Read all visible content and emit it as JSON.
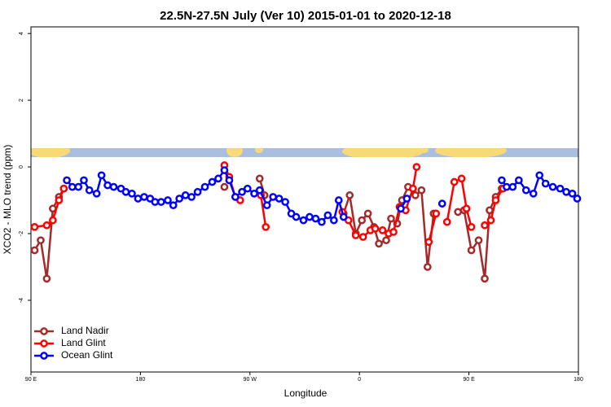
{
  "chart_data": {
    "type": "line",
    "title": "22.5N-27.5N July (Ver 10)   2015-01-01 to 2020-12-18",
    "x_label": "Longitude",
    "y_label": "XCO2 - MLO trend (ppm)",
    "xlim": [
      90,
      540
    ],
    "ylim": [
      -6.15,
      4.2
    ],
    "xticks": [
      {
        "value": 90,
        "label": "90 E"
      },
      180,
      {
        "value": 270,
        "label": "90 W"
      },
      0,
      {
        "value": 450,
        "label": "90 E"
      },
      180
    ],
    "yticks": [
      4,
      2,
      0,
      -2,
      -4
    ],
    "legend": "bottomleft",
    "series": [
      {
        "name": "Land Nadir",
        "color": "#a52a2a",
        "x": [
          93,
          98,
          103,
          108,
          113,
          117,
          null,
          249,
          null,
          278,
          282,
          null,
          347,
          352,
          357,
          362,
          367,
          372,
          376,
          382,
          386,
          391,
          395,
          400,
          406,
          411,
          416,
          421,
          null,
          441,
          446,
          452,
          458,
          463,
          467,
          472,
          477
        ],
        "values": [
          -2.5,
          -2.2,
          -3.35,
          -1.25,
          -0.9,
          -0.65,
          null,
          -0.6,
          null,
          -0.35,
          -0.85,
          null,
          -1.4,
          -0.85,
          -2.0,
          -1.6,
          -1.4,
          -1.8,
          -2.3,
          -2.2,
          -1.55,
          -1.7,
          -1.0,
          -0.6,
          -0.85,
          -0.7,
          -3.0,
          -1.4,
          null,
          -1.35,
          -1.3,
          -2.5,
          -2.2,
          -3.35,
          -1.3,
          -0.9,
          -0.65
        ]
      },
      {
        "name": "Land Glint",
        "color": "#ff0000",
        "x": [
          93,
          103,
          108,
          113,
          117,
          null,
          249,
          253,
          258,
          262,
          null,
          279,
          283,
          null,
          346,
          351,
          357,
          363,
          369,
          373,
          379,
          384,
          388,
          393,
          398,
          404,
          407,
          null,
          417,
          423,
          null,
          432,
          438,
          444,
          448,
          452,
          null,
          463,
          468,
          472,
          478
        ],
        "values": [
          -1.8,
          -1.75,
          -1.6,
          -1.0,
          -0.65,
          null,
          0.05,
          -0.3,
          -0.9,
          -1.0,
          null,
          -0.85,
          -1.8,
          null,
          -1.35,
          -1.6,
          -2.05,
          -2.1,
          -1.9,
          -1.85,
          -1.9,
          -2.0,
          -1.95,
          -1.2,
          -1.3,
          -0.65,
          0.0,
          null,
          -2.25,
          -1.4,
          null,
          -1.65,
          -0.45,
          -0.35,
          -1.25,
          -1.8,
          null,
          -1.75,
          -1.6,
          -1.0,
          -0.65
        ]
      },
      {
        "name": "Ocean Glint",
        "color": "#0000ff",
        "x": [
          119.5,
          124,
          129,
          133.5,
          138,
          144,
          148,
          153,
          158,
          164,
          168,
          173,
          178,
          183,
          188,
          192,
          197,
          202.5,
          207,
          212,
          217,
          222,
          227,
          233,
          239,
          244,
          249,
          253,
          258,
          263.5,
          268,
          273.5,
          278,
          284,
          289,
          294,
          299,
          304,
          308,
          314,
          319,
          324,
          329,
          334,
          339,
          343,
          347,
          null,
          394,
          399,
          null,
          428,
          null,
          477,
          481,
          486,
          491,
          497,
          503,
          508,
          513,
          519,
          525,
          530,
          535,
          539
        ],
        "values": [
          -0.4,
          -0.6,
          -0.6,
          -0.4,
          -0.7,
          -0.8,
          -0.25,
          -0.55,
          -0.6,
          -0.65,
          -0.75,
          -0.8,
          -0.95,
          -0.9,
          -0.95,
          -1.05,
          -1.05,
          -1.0,
          -1.15,
          -0.95,
          -0.85,
          -0.9,
          -0.75,
          -0.6,
          -0.45,
          -0.35,
          -0.1,
          -0.4,
          -0.9,
          -0.75,
          -0.65,
          -0.8,
          -0.7,
          -1.15,
          -0.9,
          -0.95,
          -1.05,
          -1.4,
          -1.5,
          -1.6,
          -1.5,
          -1.55,
          -1.65,
          -1.45,
          -1.6,
          -1.0,
          -1.5,
          null,
          -1.25,
          -0.95,
          null,
          -1.1,
          null,
          -0.4,
          -0.6,
          -0.6,
          -0.4,
          -0.7,
          -0.8,
          -0.25,
          -0.5,
          -0.6,
          -0.65,
          -0.75,
          -0.8,
          -0.95
        ]
      }
    ]
  }
}
